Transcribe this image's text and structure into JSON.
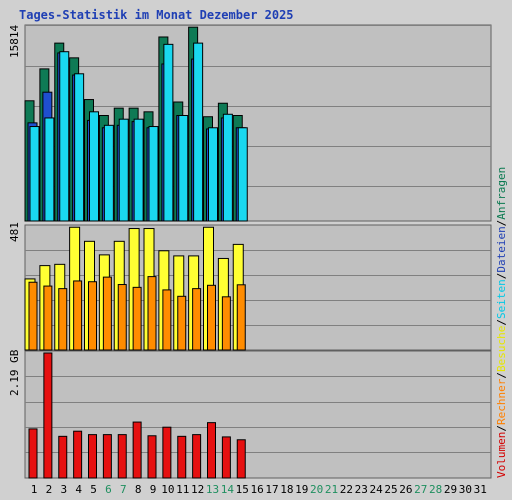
{
  "title": "Tages-Statistik im Monat Dezember 2025",
  "legend_right": [
    {
      "label": "Volumen",
      "color": "#d40000"
    },
    {
      "label": "Rechner",
      "color": "#ff8000"
    },
    {
      "label": "Besuche",
      "color": "#e6e600"
    },
    {
      "label": "Seiten",
      "color": "#00c8e6"
    },
    {
      "label": "Dateien",
      "color": "#1f3fb4"
    },
    {
      "label": "Anfragen",
      "color": "#0a7a50"
    }
  ],
  "legend_separator": "/",
  "colors": {
    "anfragen": "#0e7a55",
    "dateien": "#1f4fd0",
    "seiten": "#1ad8f0",
    "besuche": "#ffff33",
    "rechner": "#ff8c00",
    "volumen": "#e61010",
    "weekend_day": "#1f8f5f",
    "panel_bg": "#c0c0c0",
    "grid": "#808080"
  },
  "chart_data": [
    {
      "type": "bar",
      "panel": "anfragen-dateien-seiten",
      "ymax_label": "15814",
      "ylim": [
        0,
        15814
      ],
      "categories": [
        "1",
        "2",
        "3",
        "4",
        "5",
        "6",
        "7",
        "8",
        "9",
        "10",
        "11",
        "12",
        "13",
        "14",
        "15",
        "16",
        "17",
        "18",
        "19",
        "20",
        "21",
        "22",
        "23",
        "24",
        "25",
        "26",
        "27",
        "28",
        "29",
        "30",
        "31"
      ],
      "series": [
        {
          "name": "Anfragen",
          "values": [
            9800,
            12400,
            14500,
            13300,
            9900,
            8600,
            9200,
            9200,
            8900,
            15000,
            9700,
            15800,
            8500,
            9600,
            8600,
            null,
            null,
            null,
            null,
            null,
            null,
            null,
            null,
            null,
            null,
            null,
            null,
            null,
            null,
            null,
            null
          ]
        },
        {
          "name": "Dateien",
          "values": [
            8000,
            10500,
            13700,
            11900,
            8200,
            7600,
            7800,
            8100,
            7600,
            12800,
            8600,
            13200,
            7500,
            8400,
            7600,
            null,
            null,
            null,
            null,
            null,
            null,
            null,
            null,
            null,
            null,
            null,
            null,
            null,
            null,
            null,
            null
          ]
        },
        {
          "name": "Seiten",
          "values": [
            7700,
            8400,
            13800,
            12000,
            8900,
            7800,
            8300,
            8300,
            7700,
            14400,
            8600,
            14500,
            7600,
            8700,
            7600,
            null,
            null,
            null,
            null,
            null,
            null,
            null,
            null,
            null,
            null,
            null,
            null,
            null,
            null,
            null,
            null
          ]
        }
      ]
    },
    {
      "type": "bar",
      "panel": "besuche-rechner",
      "ymax_label": "481",
      "ylim": [
        0,
        481
      ],
      "categories": [
        "1",
        "2",
        "3",
        "4",
        "5",
        "6",
        "7",
        "8",
        "9",
        "10",
        "11",
        "12",
        "13",
        "14",
        "15",
        "16",
        "17",
        "18",
        "19",
        "20",
        "21",
        "22",
        "23",
        "24",
        "25",
        "26",
        "27",
        "28",
        "29",
        "30",
        "31"
      ],
      "series": [
        {
          "name": "Besuche",
          "values": [
            278,
            330,
            335,
            480,
            425,
            372,
            425,
            475,
            475,
            388,
            368,
            368,
            480,
            358,
            413,
            null,
            null,
            null,
            null,
            null,
            null,
            null,
            null,
            null,
            null,
            null,
            null,
            null,
            null,
            null,
            null
          ]
        },
        {
          "name": "Rechner",
          "values": [
            265,
            250,
            240,
            270,
            267,
            285,
            256,
            245,
            287,
            235,
            210,
            240,
            253,
            208,
            255,
            null,
            null,
            null,
            null,
            null,
            null,
            null,
            null,
            null,
            null,
            null,
            null,
            null,
            null,
            null,
            null
          ]
        }
      ]
    },
    {
      "type": "bar",
      "panel": "volumen",
      "ymax_label": "2.19 GB",
      "ylim": [
        0,
        2.19
      ],
      "categories": [
        "1",
        "2",
        "3",
        "4",
        "5",
        "6",
        "7",
        "8",
        "9",
        "10",
        "11",
        "12",
        "13",
        "14",
        "15",
        "16",
        "17",
        "18",
        "19",
        "20",
        "21",
        "22",
        "23",
        "24",
        "25",
        "26",
        "27",
        "28",
        "29",
        "30",
        "31"
      ],
      "series": [
        {
          "name": "Volumen",
          "values": [
            0.86,
            2.19,
            0.73,
            0.82,
            0.76,
            0.76,
            0.76,
            0.98,
            0.74,
            0.89,
            0.73,
            0.76,
            0.97,
            0.72,
            0.67,
            null,
            null,
            null,
            null,
            null,
            null,
            null,
            null,
            null,
            null,
            null,
            null,
            null,
            null,
            null,
            null
          ]
        }
      ]
    }
  ],
  "weekend_days": [
    "6",
    "7",
    "13",
    "14",
    "20",
    "21",
    "27",
    "28"
  ]
}
